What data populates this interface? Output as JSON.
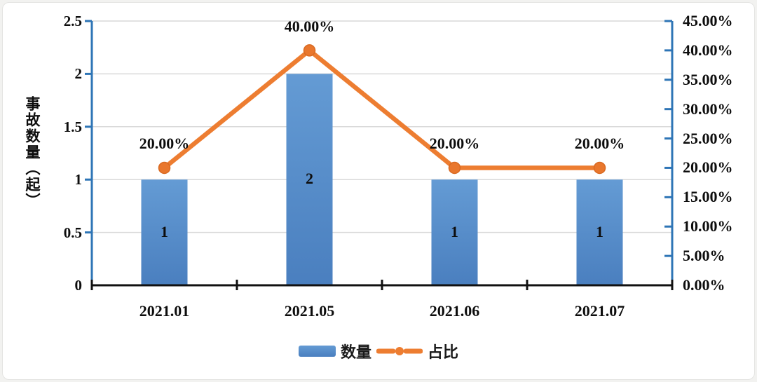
{
  "chart_data": {
    "type": "bar",
    "subtype": "combo-bar-line-dual-axis",
    "categories": [
      "2021.01",
      "2021.05",
      "2021.06",
      "2021.07"
    ],
    "series": [
      {
        "name": "数量",
        "type": "bar",
        "axis": "left",
        "values": [
          1,
          2,
          1,
          1
        ],
        "labels": [
          "1",
          "2",
          "1",
          "1"
        ]
      },
      {
        "name": "占比",
        "type": "line",
        "axis": "right",
        "values": [
          20,
          40,
          20,
          20
        ],
        "labels": [
          "20.00%",
          "40.00%",
          "20.00%",
          "20.00%"
        ]
      }
    ],
    "title": "",
    "xlabel": "",
    "left_axis": {
      "title": "事故数量（起）",
      "min": 0,
      "max": 2.5,
      "step": 0.5,
      "ticks": [
        "0",
        "0.5",
        "1",
        "1.5",
        "2",
        "2.5"
      ]
    },
    "right_axis": {
      "min": 0,
      "max": 45,
      "step": 5,
      "ticks": [
        "0.00%",
        "5.00%",
        "10.00%",
        "15.00%",
        "20.00%",
        "25.00%",
        "30.00%",
        "35.00%",
        "40.00%",
        "45.00%"
      ]
    },
    "grid": true,
    "legend_position": "bottom",
    "colors": {
      "bar_top": "#649bd4",
      "bar_bottom": "#4a7fbf",
      "line": "#ed7d31",
      "marker": "#e9772d",
      "marker_edge": "#d96a22",
      "left_axis_line": "#2e75b6",
      "right_axis_line": "#2e75b6",
      "x_axis_line": "#111111",
      "gridline": "#d9d9d9",
      "label_color": "#0d0d0d"
    }
  },
  "legend": {
    "items": [
      {
        "label": "数量",
        "swatch": "bar-swatch"
      },
      {
        "label": "占比",
        "swatch": "line-dot-swatch"
      }
    ]
  }
}
